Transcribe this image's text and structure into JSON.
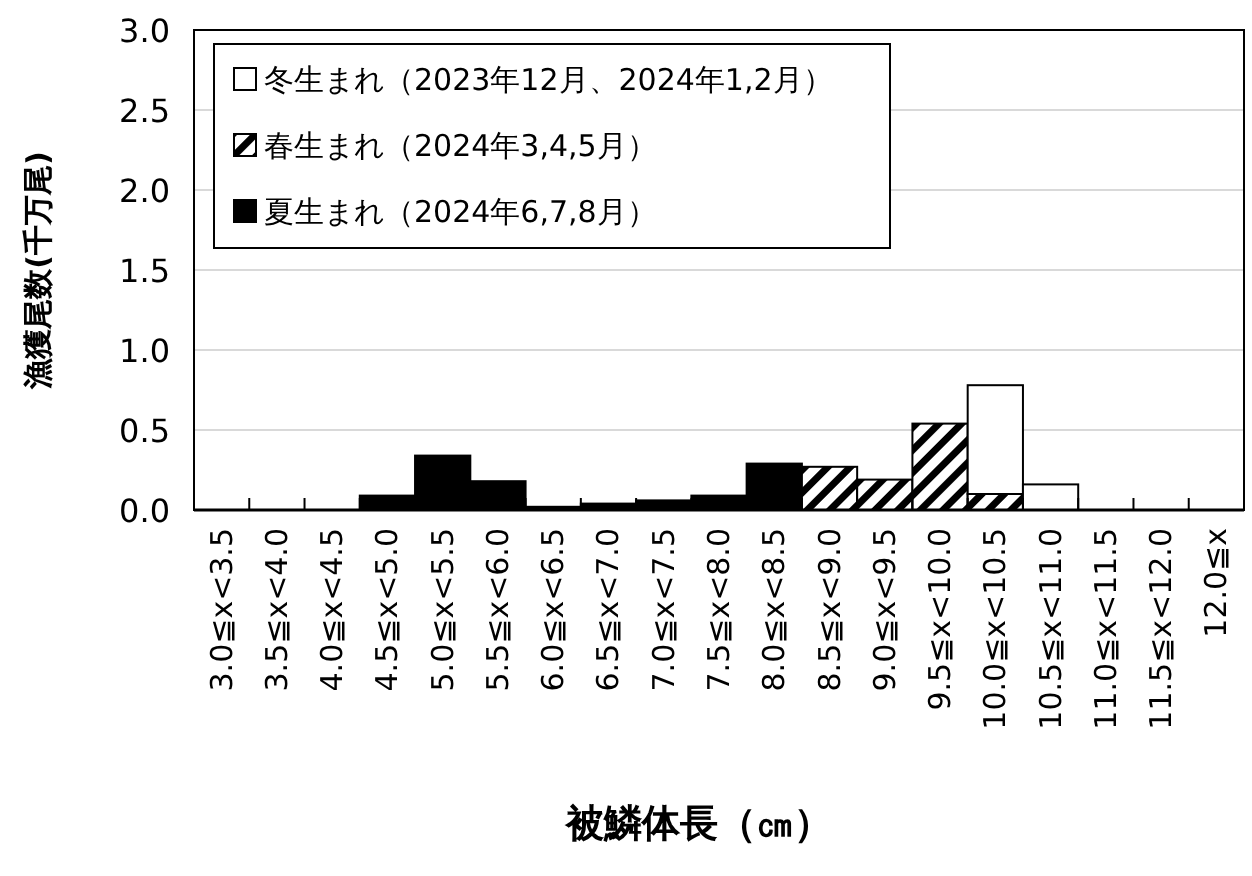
{
  "chart_data": {
    "type": "bar",
    "stacked": true,
    "xlabel": "被鱗体長（㎝）",
    "ylabel": "漁獲尾数(千万尾)",
    "categories": [
      "3.0≦x<3.5",
      "3.5≦x<4.0",
      "4.0≦x<4.5",
      "4.5≦x<5.0",
      "5.0≦x<5.5",
      "5.5≦x<6.0",
      "6.0≦x<6.5",
      "6.5≦x<7.0",
      "7.0≦x<7.5",
      "7.5≦x<8.0",
      "8.0≦x<8.5",
      "8.5≦x<9.0",
      "9.0≦x<9.5",
      "9.5≦x<10.0",
      "10.0≦x<10.5",
      "10.5≦x<11.0",
      "11.0≦x<11.5",
      "11.5≦x<12.0",
      "12.0≦x"
    ],
    "series": [
      {
        "name": "夏生まれ（2024年6,7,8月）",
        "color": "#000000",
        "values": [
          0,
          0,
          0,
          0.09,
          0.34,
          0.18,
          0.02,
          0.04,
          0.06,
          0.09,
          0.29,
          0,
          0,
          0,
          0,
          0,
          0,
          0,
          0
        ]
      },
      {
        "name": "春生まれ（2024年3,4,5月）",
        "color": "#000000",
        "values": [
          0,
          0,
          0,
          0,
          0,
          0,
          0,
          0,
          0,
          0,
          0,
          0.27,
          0.19,
          0.54,
          0.1,
          0,
          0,
          0,
          0
        ]
      },
      {
        "name": "冬生まれ（2023年12月、2024年1,2月）",
        "color": "#ffffff",
        "values": [
          0,
          0,
          0,
          0,
          0,
          0,
          0,
          0,
          0,
          0,
          0,
          0,
          0,
          0,
          0.68,
          0.16,
          0,
          0,
          0
        ]
      }
    ],
    "ylim": [
      0,
      3
    ],
    "yticks": [
      {
        "value": 0,
        "label": "0.0"
      },
      {
        "value": 0.5,
        "label": "0.5"
      },
      {
        "value": 1,
        "label": "1.0"
      },
      {
        "value": 1.5,
        "label": "1.5"
      },
      {
        "value": 2,
        "label": "2.0"
      },
      {
        "value": 2.5,
        "label": "2.5"
      },
      {
        "value": 3,
        "label": "3.0"
      }
    ],
    "grid": "y",
    "legend": "top left"
  }
}
